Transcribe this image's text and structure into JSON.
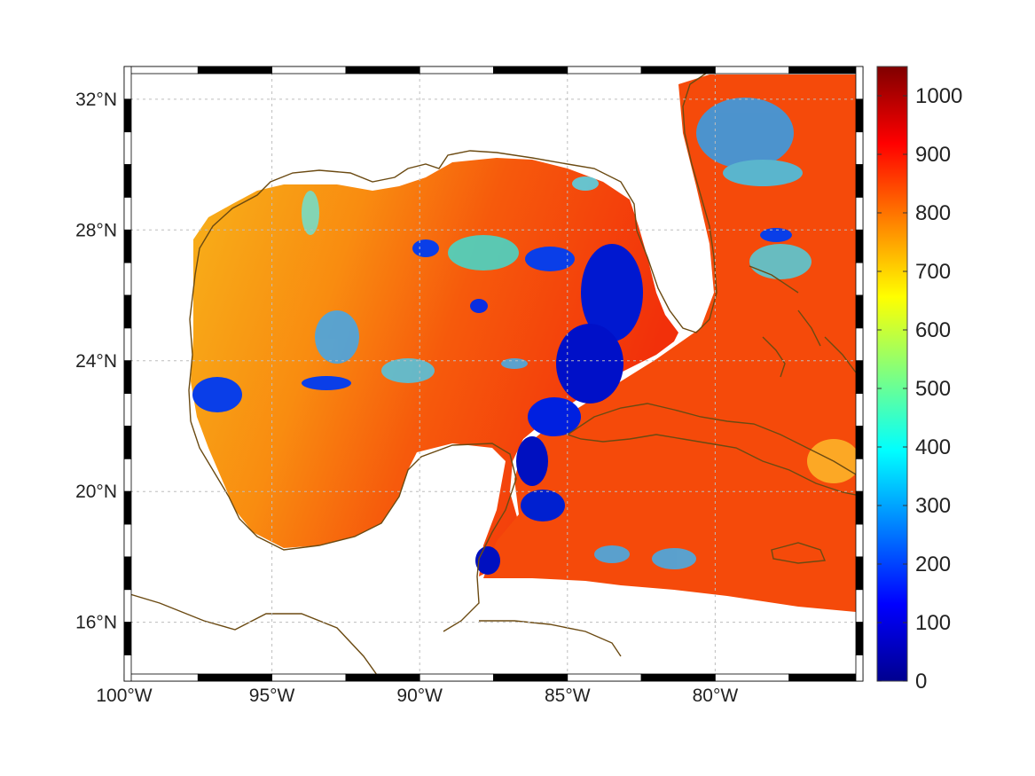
{
  "map": {
    "lon_range": [
      -100,
      -75
    ],
    "lat_range": [
      14.2,
      33
    ],
    "lon_ticks": [
      {
        "value": -100,
        "label": "100°W"
      },
      {
        "value": -95,
        "label": "95°W"
      },
      {
        "value": -90,
        "label": "90°W"
      },
      {
        "value": -85,
        "label": "85°W"
      },
      {
        "value": -80,
        "label": "80°W"
      }
    ],
    "lat_ticks": [
      {
        "value": 32,
        "label": "32°N"
      },
      {
        "value": 28,
        "label": "28°N"
      },
      {
        "value": 24,
        "label": "24°N"
      },
      {
        "value": 20,
        "label": "20°N"
      },
      {
        "value": 16,
        "label": "16°N"
      }
    ],
    "grid": true,
    "frame_style": "black-white dashed border",
    "coastline_color": "#6b4a12",
    "colormap": "jet"
  },
  "colorbar": {
    "range": [
      0,
      1050
    ],
    "ticks": [
      {
        "value": 1000,
        "label": "1000"
      },
      {
        "value": 900,
        "label": "900"
      },
      {
        "value": 800,
        "label": "800"
      },
      {
        "value": 700,
        "label": "700"
      },
      {
        "value": 600,
        "label": "600"
      },
      {
        "value": 500,
        "label": "500"
      },
      {
        "value": 400,
        "label": "400"
      },
      {
        "value": 300,
        "label": "300"
      },
      {
        "value": 200,
        "label": "200"
      },
      {
        "value": 100,
        "label": "100"
      },
      {
        "value": 0,
        "label": "0"
      }
    ]
  }
}
